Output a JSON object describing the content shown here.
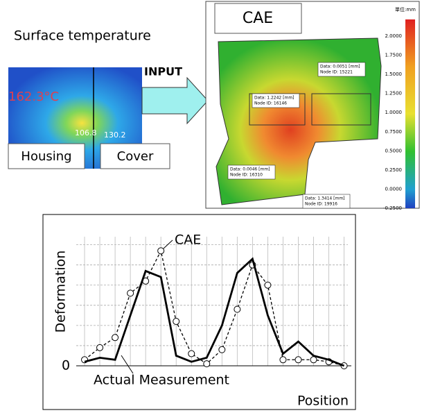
{
  "header": {
    "surface_label": "Surface temperature",
    "input_label": "INPUT",
    "cae_label": "CAE"
  },
  "thermal": {
    "max_temp": "162.3°C",
    "point_a": "106.8",
    "point_b": "130.2",
    "housing": "Housing",
    "cover": "Cover"
  },
  "cae_view": {
    "unit": "単位:mm",
    "colorbar": [
      "2.0000",
      "1.7500",
      "1.5000",
      "1.2500",
      "1.0000",
      "0.7500",
      "0.5000",
      "0.2500",
      "0.0000",
      "-0.2500"
    ],
    "callouts": [
      {
        "data": "Data:   0.0051 [mm]",
        "node": "Node ID: 15221"
      },
      {
        "data": "Data:   1.2242 [mm]",
        "node": "Node ID: 16146"
      },
      {
        "data": "Data:   0.0046 [mm]",
        "node": "Node ID: 16310"
      },
      {
        "data": "Data:   1.3414 [mm]",
        "node": "Node ID: 19916"
      }
    ]
  },
  "chart_data": {
    "type": "line",
    "ylabel": "Deformation",
    "xlabel": "Position",
    "xlim": [
      -1,
      17.7
    ],
    "ylim": [
      0,
      7.5
    ],
    "yticks": [
      {
        "value": 0,
        "label": "0"
      }
    ],
    "ygrid": [
      1,
      2,
      3,
      4,
      5,
      6
    ],
    "grid": true,
    "series": [
      {
        "name": "CAE",
        "color": "#000000",
        "dashed": true,
        "markers": true,
        "x": [
          0,
          1,
          2,
          3,
          4,
          5,
          6,
          7,
          8,
          9,
          10,
          11,
          12,
          13,
          14,
          15,
          16,
          17
        ],
        "values": [
          0.3,
          0.9,
          1.4,
          3.6,
          4.2,
          5.7,
          2.2,
          0.6,
          0.1,
          0.8,
          2.8,
          5.0,
          4.0,
          0.3,
          0.3,
          0.3,
          0.2,
          0
        ]
      },
      {
        "name": "Actual Measurement",
        "color": "#000000",
        "dashed": false,
        "markers": false,
        "x": [
          0,
          1,
          2,
          4,
          5,
          6,
          7,
          8,
          9,
          10,
          11,
          12,
          13,
          14,
          15,
          16,
          17
        ],
        "values": [
          0.2,
          0.4,
          0.3,
          4.7,
          4.4,
          0.5,
          0.2,
          0.4,
          2.0,
          4.6,
          5.3,
          2.5,
          0.6,
          1.2,
          0.5,
          0.3,
          0
        ]
      }
    ]
  }
}
